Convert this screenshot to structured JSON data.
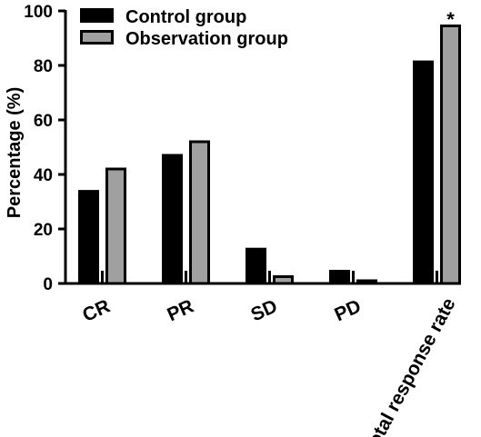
{
  "chart_data": {
    "type": "bar",
    "title": "",
    "xlabel": "",
    "ylabel": "Percentage (%)",
    "ylim": [
      0,
      100
    ],
    "yticks": [
      0,
      20,
      40,
      60,
      80,
      100
    ],
    "categories": [
      "CR",
      "PR",
      "SD",
      "PD",
      "Total response rate"
    ],
    "series": [
      {
        "name": "Control group",
        "color": "#000000",
        "values": [
          34.3,
          47.5,
          13.1,
          5.0,
          81.8
        ]
      },
      {
        "name": "Observation group",
        "color": "#a0a0a0",
        "values": [
          42.5,
          52.5,
          3.0,
          1.5,
          95.0
        ]
      }
    ],
    "annotations": [
      {
        "category": "Total response rate",
        "series": "Observation group",
        "text": "*"
      }
    ],
    "grid": false,
    "legend_position": "top-left"
  }
}
